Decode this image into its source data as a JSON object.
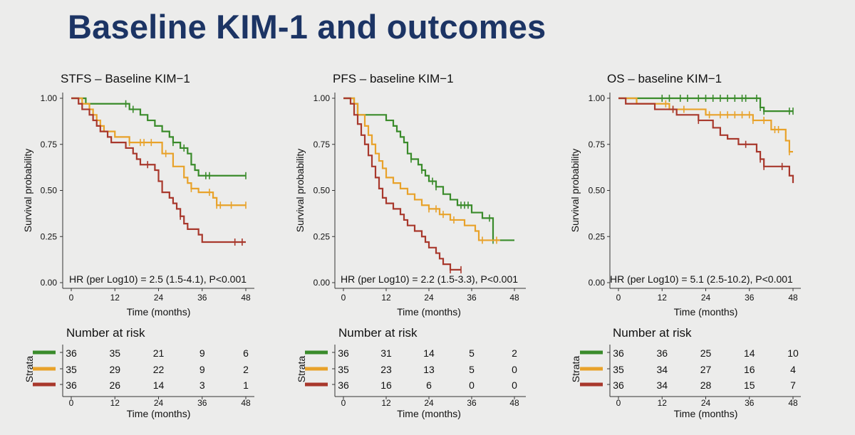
{
  "slide": {
    "title": "Baseline KIM-1 and outcomes"
  },
  "colors": {
    "green": "#3a8b2b",
    "orange": "#e8a22a",
    "red": "#a8382c",
    "axis": "#333333",
    "text": "#111111"
  },
  "risk_table": {
    "heading": "Number at risk",
    "strata_label": "Strata",
    "xlabel": "Time (months)"
  },
  "chart_data": [
    {
      "type": "line",
      "title": "STFS – Baseline KIM−1",
      "xlabel": "Time (months)",
      "ylabel": "Survival probability",
      "xlim": [
        0,
        48
      ],
      "ylim": [
        0,
        1
      ],
      "x_ticks": [
        0,
        12,
        24,
        36,
        48
      ],
      "y_ticks": [
        0,
        0.25,
        0.5,
        0.75,
        1.0
      ],
      "y_tick_labels": [
        "0.00",
        "0.25",
        "0.50",
        "0.75",
        "1.00"
      ],
      "grid": false,
      "annotation": "HR (per Log10) = 2.5 (1.5-4.1), P<0.001",
      "series": [
        {
          "color": "green",
          "censored": [
            15,
            17,
            28,
            31,
            37,
            38,
            48
          ],
          "steps": [
            [
              0,
              1.0
            ],
            [
              4,
              0.97
            ],
            [
              14,
              0.97
            ],
            [
              16,
              0.94
            ],
            [
              19,
              0.91
            ],
            [
              21,
              0.88
            ],
            [
              23,
              0.85
            ],
            [
              25,
              0.82
            ],
            [
              27,
              0.79
            ],
            [
              28,
              0.76
            ],
            [
              30,
              0.73
            ],
            [
              32,
              0.7
            ],
            [
              33,
              0.64
            ],
            [
              34,
              0.61
            ],
            [
              35,
              0.58
            ],
            [
              48,
              0.58
            ]
          ]
        },
        {
          "color": "orange",
          "censored": [
            16,
            19,
            20,
            22,
            26,
            33,
            38,
            40,
            41,
            44,
            48
          ],
          "steps": [
            [
              0,
              1.0
            ],
            [
              3,
              0.97
            ],
            [
              5,
              0.94
            ],
            [
              6,
              0.91
            ],
            [
              7,
              0.88
            ],
            [
              8,
              0.85
            ],
            [
              9,
              0.82
            ],
            [
              12,
              0.79
            ],
            [
              16,
              0.76
            ],
            [
              25,
              0.7
            ],
            [
              28,
              0.63
            ],
            [
              31,
              0.57
            ],
            [
              32,
              0.54
            ],
            [
              33,
              0.51
            ],
            [
              35,
              0.49
            ],
            [
              39,
              0.46
            ],
            [
              40,
              0.42
            ],
            [
              48,
              0.42
            ]
          ]
        },
        {
          "color": "red",
          "censored": [
            21,
            30,
            45,
            47
          ],
          "steps": [
            [
              0,
              1.0
            ],
            [
              2,
              0.97
            ],
            [
              3,
              0.94
            ],
            [
              5,
              0.91
            ],
            [
              6,
              0.88
            ],
            [
              7,
              0.85
            ],
            [
              8,
              0.82
            ],
            [
              10,
              0.79
            ],
            [
              11,
              0.76
            ],
            [
              15,
              0.73
            ],
            [
              17,
              0.7
            ],
            [
              18,
              0.67
            ],
            [
              19,
              0.64
            ],
            [
              23,
              0.61
            ],
            [
              24,
              0.55
            ],
            [
              25,
              0.49
            ],
            [
              27,
              0.46
            ],
            [
              28,
              0.43
            ],
            [
              29,
              0.4
            ],
            [
              30,
              0.36
            ],
            [
              31,
              0.32
            ],
            [
              32,
              0.29
            ],
            [
              35,
              0.26
            ],
            [
              36,
              0.22
            ],
            [
              48,
              0.22
            ]
          ]
        }
      ],
      "risk_counts": [
        [
          36,
          35,
          21,
          9,
          6
        ],
        [
          35,
          29,
          22,
          9,
          2
        ],
        [
          36,
          26,
          14,
          3,
          1
        ]
      ]
    },
    {
      "type": "line",
      "title": "PFS – baseline KIM−1",
      "xlabel": "Time (months)",
      "ylabel": "Survival probability",
      "xlim": [
        0,
        48
      ],
      "ylim": [
        0,
        1
      ],
      "x_ticks": [
        0,
        12,
        24,
        36,
        48
      ],
      "y_ticks": [
        0,
        0.25,
        0.5,
        0.75,
        1.0
      ],
      "y_tick_labels": [
        "0.00",
        "0.25",
        "0.50",
        "0.75",
        "1.00"
      ],
      "grid": false,
      "annotation": "HR (per Log10) = 2.2 (1.5-3.3), P<0.001",
      "series": [
        {
          "color": "green",
          "censored": [
            19,
            22,
            25,
            26,
            33,
            34,
            35,
            41,
            42
          ],
          "steps": [
            [
              0,
              1.0
            ],
            [
              3,
              0.97
            ],
            [
              4,
              0.91
            ],
            [
              12,
              0.88
            ],
            [
              14,
              0.85
            ],
            [
              15,
              0.82
            ],
            [
              16,
              0.79
            ],
            [
              17,
              0.76
            ],
            [
              18,
              0.7
            ],
            [
              19,
              0.67
            ],
            [
              21,
              0.64
            ],
            [
              22,
              0.61
            ],
            [
              23,
              0.58
            ],
            [
              24,
              0.55
            ],
            [
              26,
              0.52
            ],
            [
              28,
              0.48
            ],
            [
              30,
              0.45
            ],
            [
              32,
              0.42
            ],
            [
              36,
              0.38
            ],
            [
              39,
              0.35
            ],
            [
              42,
              0.23
            ],
            [
              48,
              0.23
            ]
          ]
        },
        {
          "color": "orange",
          "censored": [
            24,
            26,
            28,
            31,
            39,
            43
          ],
          "steps": [
            [
              0,
              1.0
            ],
            [
              3,
              0.97
            ],
            [
              4,
              0.91
            ],
            [
              6,
              0.85
            ],
            [
              7,
              0.8
            ],
            [
              8,
              0.75
            ],
            [
              9,
              0.7
            ],
            [
              10,
              0.66
            ],
            [
              11,
              0.62
            ],
            [
              12,
              0.57
            ],
            [
              14,
              0.54
            ],
            [
              16,
              0.51
            ],
            [
              18,
              0.48
            ],
            [
              20,
              0.45
            ],
            [
              22,
              0.42
            ],
            [
              24,
              0.4
            ],
            [
              27,
              0.37
            ],
            [
              30,
              0.34
            ],
            [
              34,
              0.31
            ],
            [
              37,
              0.28
            ],
            [
              38,
              0.23
            ],
            [
              44,
              0.23
            ]
          ]
        },
        {
          "color": "red",
          "censored": [
            30,
            33
          ],
          "steps": [
            [
              0,
              1.0
            ],
            [
              2,
              0.97
            ],
            [
              3,
              0.91
            ],
            [
              4,
              0.86
            ],
            [
              5,
              0.8
            ],
            [
              6,
              0.75
            ],
            [
              7,
              0.69
            ],
            [
              8,
              0.63
            ],
            [
              9,
              0.57
            ],
            [
              10,
              0.51
            ],
            [
              11,
              0.46
            ],
            [
              12,
              0.43
            ],
            [
              14,
              0.4
            ],
            [
              16,
              0.37
            ],
            [
              17,
              0.34
            ],
            [
              18,
              0.31
            ],
            [
              20,
              0.28
            ],
            [
              22,
              0.25
            ],
            [
              23,
              0.22
            ],
            [
              24,
              0.19
            ],
            [
              26,
              0.16
            ],
            [
              27,
              0.13
            ],
            [
              28,
              0.1
            ],
            [
              30,
              0.07
            ],
            [
              33,
              0.07
            ]
          ]
        }
      ],
      "risk_counts": [
        [
          36,
          31,
          14,
          5,
          2
        ],
        [
          35,
          23,
          13,
          5,
          0
        ],
        [
          36,
          16,
          6,
          0,
          0
        ]
      ]
    },
    {
      "type": "line",
      "title": "OS – baseline KIM−1",
      "xlabel": "Time (months)",
      "ylabel": "Survival probability",
      "xlim": [
        0,
        48
      ],
      "ylim": [
        0,
        1
      ],
      "x_ticks": [
        0,
        12,
        24,
        36,
        48
      ],
      "y_ticks": [
        0,
        0.25,
        0.5,
        0.75,
        1.0
      ],
      "y_tick_labels": [
        "0.00",
        "0.25",
        "0.50",
        "0.75",
        "1.00"
      ],
      "grid": false,
      "annotation": "HR (per Log10) = 5.1 (2.5-10.2), P<0.001",
      "series": [
        {
          "color": "green",
          "censored": [
            12,
            14,
            17,
            19,
            22,
            24,
            26,
            28,
            30,
            32,
            34,
            35,
            38,
            39,
            40,
            47,
            48
          ],
          "steps": [
            [
              0,
              1.0
            ],
            [
              37,
              1.0
            ],
            [
              39,
              0.95
            ],
            [
              40,
              0.93
            ],
            [
              48,
              0.93
            ]
          ]
        },
        {
          "color": "orange",
          "censored": [
            13,
            15,
            18,
            25,
            28,
            30,
            32,
            34,
            36,
            37,
            40,
            43,
            44,
            47
          ],
          "steps": [
            [
              0,
              1.0
            ],
            [
              5,
              0.97
            ],
            [
              14,
              0.94
            ],
            [
              24,
              0.91
            ],
            [
              37,
              0.88
            ],
            [
              42,
              0.83
            ],
            [
              46,
              0.77
            ],
            [
              47,
              0.71
            ],
            [
              48,
              0.71
            ]
          ]
        },
        {
          "color": "red",
          "censored": [
            15,
            22,
            35,
            39,
            40,
            45
          ],
          "steps": [
            [
              0,
              1.0
            ],
            [
              2,
              0.97
            ],
            [
              10,
              0.94
            ],
            [
              16,
              0.91
            ],
            [
              22,
              0.88
            ],
            [
              26,
              0.84
            ],
            [
              28,
              0.8
            ],
            [
              30,
              0.78
            ],
            [
              33,
              0.75
            ],
            [
              38,
              0.71
            ],
            [
              39,
              0.67
            ],
            [
              40,
              0.63
            ],
            [
              47,
              0.58
            ],
            [
              48,
              0.54
            ]
          ]
        }
      ],
      "risk_counts": [
        [
          36,
          36,
          25,
          14,
          10
        ],
        [
          35,
          34,
          27,
          16,
          4
        ],
        [
          36,
          34,
          28,
          15,
          7
        ]
      ]
    }
  ]
}
